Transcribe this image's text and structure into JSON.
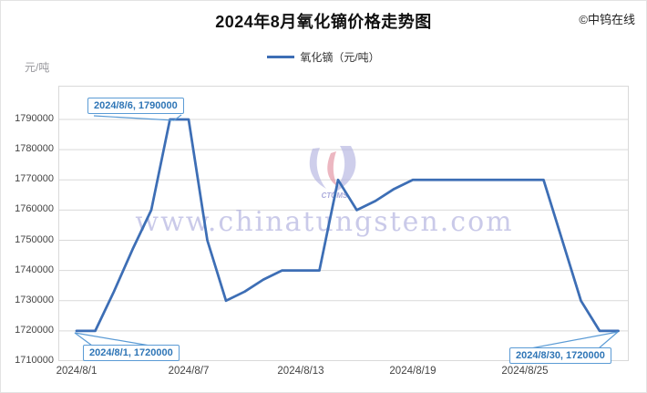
{
  "page": {
    "title": "2024年8月氧化镝价格走势图",
    "copyright": "©中钨在线",
    "watermark_text": "www.chinatungsten.com",
    "watermark_logo_text": "CTOMS"
  },
  "legend": {
    "label": "氧化镝（元/吨）"
  },
  "y_axis": {
    "unit": "元/吨"
  },
  "annotations": {
    "peak": "2024/8/6, 1790000",
    "start": "2024/8/1, 1720000",
    "end": "2024/8/30, 1720000"
  },
  "colors": {
    "line": "#3D6EB5",
    "annotation_text": "#2E75B6",
    "annotation_border": "#5B9BD5",
    "gridline": "#D9D9D9",
    "watermark": "#9E9ED7",
    "logo_lavender": "#B3B3E0",
    "logo_pink": "#E08798"
  },
  "chart_data": {
    "type": "line",
    "title": "2024年8月氧化镝价格走势图",
    "grid": "horizontal",
    "legend_position": "top-center",
    "ylabel": "元/吨",
    "ylim": [
      1710000,
      1800000
    ],
    "ytick_step": 10000,
    "ytick_values": [
      1790000,
      1780000,
      1770000,
      1760000,
      1750000,
      1740000,
      1730000,
      1720000,
      1710000
    ],
    "xtick_days": [
      1,
      7,
      13,
      19,
      25
    ],
    "xtick_labels": [
      "2024/8/1",
      "2024/8/7",
      "2024/8/13",
      "2024/8/19",
      "2024/8/25"
    ],
    "series": [
      {
        "name": "氧化镝（元/吨）",
        "x": [
          "2024/8/1",
          "2024/8/2",
          "2024/8/3",
          "2024/8/4",
          "2024/8/5",
          "2024/8/6",
          "2024/8/7",
          "2024/8/8",
          "2024/8/9",
          "2024/8/10",
          "2024/8/11",
          "2024/8/12",
          "2024/8/13",
          "2024/8/14",
          "2024/8/15",
          "2024/8/16",
          "2024/8/17",
          "2024/8/18",
          "2024/8/19",
          "2024/8/20",
          "2024/8/21",
          "2024/8/22",
          "2024/8/23",
          "2024/8/24",
          "2024/8/25",
          "2024/8/26",
          "2024/8/27",
          "2024/8/28",
          "2024/8/29",
          "2024/8/30"
        ],
        "values": [
          1720000,
          1720000,
          1733000,
          1747000,
          1760000,
          1790000,
          1790000,
          1750000,
          1730000,
          1733000,
          1737000,
          1740000,
          1740000,
          1740000,
          1770000,
          1760000,
          1763000,
          1767000,
          1770000,
          1770000,
          1770000,
          1770000,
          1770000,
          1770000,
          1770000,
          1770000,
          1750000,
          1730000,
          1720000,
          1720000
        ]
      }
    ],
    "annotations": [
      {
        "label": "2024/8/6, 1790000",
        "day": 6,
        "value": 1790000
      },
      {
        "label": "2024/8/1, 1720000",
        "day": 1,
        "value": 1720000
      },
      {
        "label": "2024/8/30, 1720000",
        "day": 30,
        "value": 1720000
      }
    ]
  }
}
